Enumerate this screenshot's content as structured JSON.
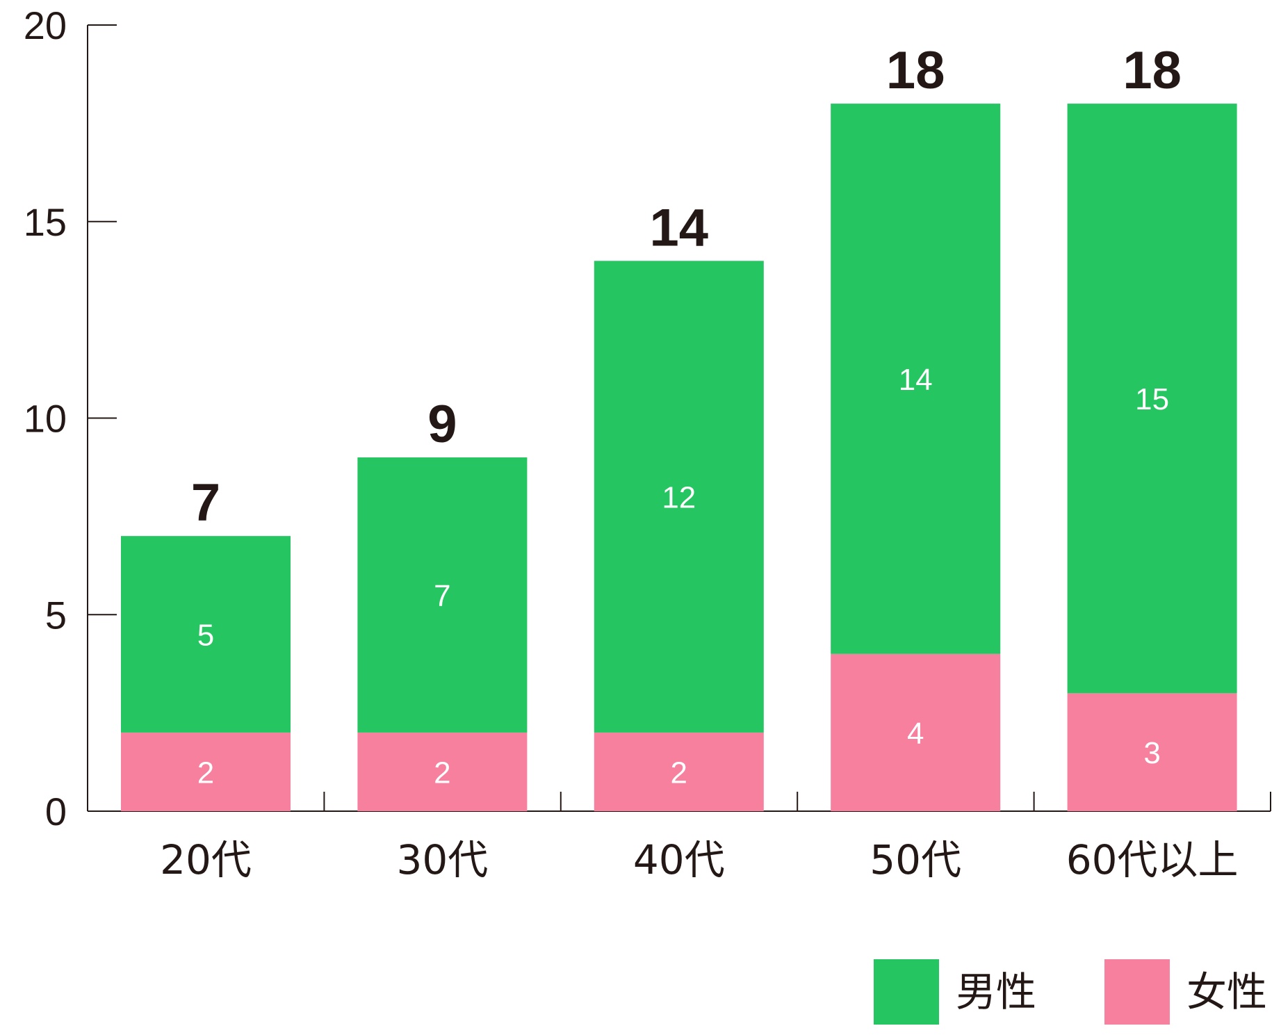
{
  "chart_data": {
    "type": "bar",
    "stacked": true,
    "categories": [
      "20代",
      "30代",
      "40代",
      "50代",
      "60代以上"
    ],
    "series": [
      {
        "name": "女性",
        "values": [
          2,
          2,
          2,
          4,
          3
        ],
        "color": "#f7809e"
      },
      {
        "name": "男性",
        "values": [
          5,
          7,
          12,
          14,
          15
        ],
        "color": "#25c561"
      }
    ],
    "totals": [
      7,
      9,
      14,
      18,
      18
    ],
    "yticks": [
      0,
      5,
      10,
      15,
      20
    ],
    "ylim": [
      0,
      20
    ],
    "title": "",
    "xlabel": "",
    "ylabel": "",
    "legend": {
      "placement": "bottom-right",
      "items": [
        {
          "label": "男性",
          "color": "#25c561"
        },
        {
          "label": "女性",
          "color": "#f7809e"
        }
      ]
    },
    "axis_color": "#231815",
    "grid": false
  }
}
